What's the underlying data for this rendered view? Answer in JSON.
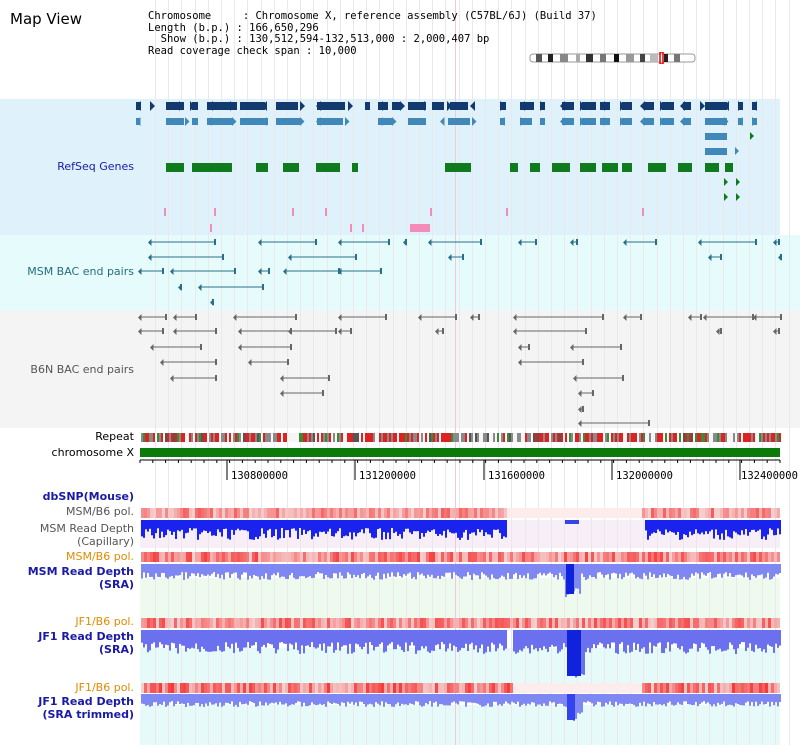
{
  "map_title": "Map View",
  "info": {
    "line1": "Chromosome     : Chromosome X, reference assembly (C57BL/6J) (Build 37)",
    "line2": "Length (b.p.) : 166,650,296",
    "line3": "  Show (b.p.) : 130,512,594-132,513,000 : 2,000,407 bp",
    "line4": "Read coverage check span : 10,000"
  },
  "tracks": {
    "refseq": "RefSeq Genes",
    "msm_bac": "MSM BAC end pairs",
    "b6n_bac": "B6N BAC end pairs",
    "repeat": "Repeat",
    "chrom": "chromosome X",
    "dbsnp": "dbSNP(Mouse)",
    "msm_b6_pol_1": "MSM/B6 pol.",
    "msm_depth_cap_1": "MSM Read Depth",
    "msm_depth_cap_2": "(Capillary)",
    "msm_b6_pol_2": "MSM/B6 pol.",
    "msm_depth_sra_1": "MSM Read Depth",
    "msm_depth_sra_2": "(SRA)",
    "jf1_b6_pol_1": "JF1/B6 pol.",
    "jf1_depth_sra_1": "JF1 Read Depth",
    "jf1_depth_sra_2": "(SRA)",
    "jf1_b6_pol_2": "JF1/B6 pol.",
    "jf1_depth_trim_1": "JF1 Read Depth",
    "jf1_depth_trim_2": "(SRA trimmed)"
  },
  "axis": {
    "ticks": [
      "130800000",
      "131200000",
      "131600000",
      "132000000",
      "132400000"
    ]
  },
  "colors": {
    "refseq_bg": "#dff2fb",
    "msm_bac_bg": "#e6fbfb",
    "b6n_bg": "#f6f6f6",
    "dark_gene": "#123a6e",
    "mid_gene": "#3f88b8",
    "green_gene": "#0f7a1e",
    "bac_line": "#2a6f8a",
    "chrom_green": "#0b7a0b",
    "depth_blue": "#2233ff",
    "pol_red": "#ee3333",
    "label_navy": "#1a1aa6",
    "label_orange": "#e08a00",
    "label_teal": "#236e82",
    "label_gray": "#555555"
  }
}
